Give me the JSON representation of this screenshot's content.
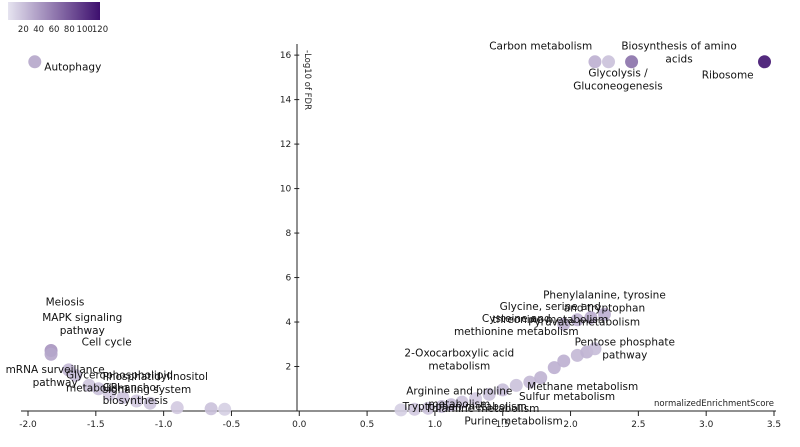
{
  "chart_data": {
    "type": "scatter",
    "title": "",
    "xlabel": "normalizedEnrichmentScore",
    "ylabel": "-Log10 of FDR",
    "xlim": [
      -2.0,
      3.5
    ],
    "ylim": [
      0,
      16.5
    ],
    "x_ticks": [
      -2.0,
      -1.5,
      -1.0,
      -0.5,
      0.0,
      0.5,
      1.0,
      1.5,
      2.0,
      2.5,
      3.0,
      3.5
    ],
    "x_tick_labels": [
      "-2.0",
      "-1.5",
      "-1.0",
      "-0.5",
      "0.0",
      "0.5",
      "1.0",
      "1.5",
      "2.0",
      "2.5",
      "3.0",
      "3.5"
    ],
    "y_ticks": [
      2,
      4,
      6,
      8,
      10,
      12,
      14,
      16
    ],
    "y_tick_labels": [
      "2",
      "4",
      "6",
      "8",
      "10",
      "12",
      "14",
      "16"
    ],
    "grid": false,
    "color_scale": {
      "min": 0,
      "max": 120,
      "ticks": [
        20,
        40,
        60,
        80,
        100,
        120
      ],
      "tick_labels": [
        "20",
        "40",
        "60",
        "80",
        "100",
        "120"
      ],
      "color_low": "#e6e4f0",
      "color_high": "#3d0f6e",
      "legend_position": "top-left"
    },
    "points": [
      {
        "x": -1.95,
        "y": 15.7,
        "color_value": 35,
        "label": "Autophagy",
        "label_anchor": "start"
      },
      {
        "x": 2.18,
        "y": 15.7,
        "color_value": 30,
        "label": "Carbon metabolism",
        "label_anchor": "end"
      },
      {
        "x": 2.28,
        "y": 15.7,
        "color_value": 20,
        "label": "Glycolysis / Gluconeogenesis",
        "label_anchor": "middle"
      },
      {
        "x": 2.45,
        "y": 15.7,
        "color_value": 65,
        "label": "Biosynthesis of amino acids",
        "label_anchor": "middle"
      },
      {
        "x": 3.43,
        "y": 15.7,
        "color_value": 118,
        "label": "Ribosome",
        "label_anchor": "end"
      },
      {
        "x": -1.83,
        "y": 2.72,
        "color_value": 45,
        "label": "Meiosis",
        "label_anchor": "start"
      },
      {
        "x": -1.83,
        "y": 2.55,
        "color_value": 35,
        "label": "MAPK signaling pathway",
        "label_anchor": "start"
      },
      {
        "x": -1.7,
        "y": 1.85,
        "color_value": 25,
        "label": "Cell cycle",
        "label_anchor": "start"
      },
      {
        "x": -1.65,
        "y": 1.6,
        "color_value": 22,
        "label": "mRNA surveillance pathway",
        "label_anchor": "end"
      },
      {
        "x": -1.55,
        "y": 1.15,
        "color_value": 18,
        "label": "Glycerophospholipid metabolism",
        "label_anchor": "start"
      },
      {
        "x": -1.48,
        "y": 1.0,
        "color_value": 20,
        "label": "Phosphatidylinositol signaling system",
        "label_anchor": "start"
      },
      {
        "x": -1.4,
        "y": 0.75,
        "color_value": 15,
        "label": "GPI-anchor biosynthesis",
        "label_anchor": "start"
      },
      {
        "x": -1.3,
        "y": 0.6,
        "color_value": 18,
        "label": "",
        "label_anchor": "start"
      },
      {
        "x": -1.2,
        "y": 0.45,
        "color_value": 15,
        "label": "",
        "label_anchor": "start"
      },
      {
        "x": -1.1,
        "y": 0.35,
        "color_value": 18,
        "label": "",
        "label_anchor": "start"
      },
      {
        "x": -0.9,
        "y": 0.15,
        "color_value": 15,
        "label": "",
        "label_anchor": "start"
      },
      {
        "x": -0.65,
        "y": 0.1,
        "color_value": 20,
        "label": "",
        "label_anchor": "start"
      },
      {
        "x": -0.55,
        "y": 0.08,
        "color_value": 12,
        "label": "",
        "label_anchor": "start"
      },
      {
        "x": 0.75,
        "y": 0.05,
        "color_value": 12,
        "label": "",
        "label_anchor": "start"
      },
      {
        "x": 0.85,
        "y": 0.08,
        "color_value": 15,
        "label": "",
        "label_anchor": "start"
      },
      {
        "x": 0.95,
        "y": 0.12,
        "color_value": 18,
        "label": "",
        "label_anchor": "start"
      },
      {
        "x": 1.05,
        "y": 0.2,
        "color_value": 20,
        "label": "Arginine and proline metabolism",
        "label_anchor": "middle"
      },
      {
        "x": 1.12,
        "y": 0.28,
        "color_value": 22,
        "label": "Tryptophan metabolism",
        "label_anchor": "middle"
      },
      {
        "x": 1.2,
        "y": 0.4,
        "color_value": 18,
        "label": "Thiamine metabolism",
        "label_anchor": "middle"
      },
      {
        "x": 1.3,
        "y": 0.55,
        "color_value": 15,
        "label": "Purine metabolism",
        "label_anchor": "middle"
      },
      {
        "x": 1.4,
        "y": 0.75,
        "color_value": 20,
        "label": "",
        "label_anchor": "start"
      },
      {
        "x": 1.5,
        "y": 0.95,
        "color_value": 22,
        "label": "Sulfur metabolism",
        "label_anchor": "start"
      },
      {
        "x": 1.6,
        "y": 1.15,
        "color_value": 20,
        "label": "Methane metabolism",
        "label_anchor": "start"
      },
      {
        "x": 1.7,
        "y": 1.3,
        "color_value": 25,
        "label": "",
        "label_anchor": "start"
      },
      {
        "x": 1.78,
        "y": 1.5,
        "color_value": 28,
        "label": "",
        "label_anchor": "start"
      },
      {
        "x": 1.88,
        "y": 1.95,
        "color_value": 30,
        "label": "",
        "label_anchor": "start"
      },
      {
        "x": 1.95,
        "y": 2.25,
        "color_value": 30,
        "label": "2-Oxocarboxylic acid metabolism",
        "label_anchor": "end"
      },
      {
        "x": 2.05,
        "y": 2.5,
        "color_value": 25,
        "label": "",
        "label_anchor": "start"
      },
      {
        "x": 2.12,
        "y": 2.65,
        "color_value": 28,
        "label": "Pentose phosphate pathway",
        "label_anchor": "middle"
      },
      {
        "x": 2.18,
        "y": 2.8,
        "color_value": 22,
        "label": "",
        "label_anchor": "start"
      },
      {
        "x": 1.95,
        "y": 3.9,
        "color_value": 30,
        "label": "Cysteine and methionine metabolism",
        "label_anchor": "middle"
      },
      {
        "x": 2.05,
        "y": 4.1,
        "color_value": 28,
        "label": "Glycine, serine and threonine metabolism",
        "label_anchor": "middle"
      },
      {
        "x": 2.15,
        "y": 4.2,
        "color_value": 32,
        "label": "Pyruvate metabolism",
        "label_anchor": "middle"
      },
      {
        "x": 2.25,
        "y": 4.35,
        "color_value": 30,
        "label": "Phenylalanine, tyrosine and tryptophan biosynthesis",
        "label_anchor": "middle"
      }
    ],
    "labels": [
      {
        "text": "Autophagy",
        "x": -1.88,
        "y": 15.3,
        "anchor": "start"
      },
      {
        "text": "Carbon metabolism",
        "x": 1.78,
        "y": 16.25,
        "anchor": "middle"
      },
      {
        "lines": [
          "Biosynthesis of amino",
          "acids"
        ],
        "x": 2.8,
        "y": 16.25,
        "anchor": "middle"
      },
      {
        "lines": [
          "Glycolysis /",
          "Gluconeogenesis"
        ],
        "x": 2.35,
        "y": 15.05,
        "anchor": "middle"
      },
      {
        "text": "Ribosome",
        "x": 3.35,
        "y": 14.95,
        "anchor": "end"
      },
      {
        "text": "Meiosis",
        "x": -1.87,
        "y": 4.75,
        "anchor": "start"
      },
      {
        "lines": [
          "MAPK signaling",
          "pathway"
        ],
        "x": -1.6,
        "y": 4.05,
        "anchor": "middle"
      },
      {
        "text": "Cell cycle",
        "x": -1.42,
        "y": 2.95,
        "anchor": "middle"
      },
      {
        "lines": [
          "mRNA surveillance",
          "pathway"
        ],
        "x": -1.8,
        "y": 1.7,
        "anchor": "middle"
      },
      {
        "lines": [
          "Glycerophospholipid",
          "metabolism"
        ],
        "x": -1.72,
        "y": 1.45,
        "anchor": "start"
      },
      {
        "lines": [
          "Phosphatidylinositol",
          "signaling system"
        ],
        "x": -1.45,
        "y": 1.4,
        "anchor": "start"
      },
      {
        "lines": [
          "GPI-anchor",
          "biosynthesis"
        ],
        "x": -1.45,
        "y": 0.9,
        "anchor": "start"
      },
      {
        "lines": [
          "Phenylalanine, tyrosine",
          "and tryptophan"
        ],
        "x": 2.25,
        "y": 5.05,
        "anchor": "middle"
      },
      {
        "lines": [
          "Glycine, serine and",
          "threonine metabolism"
        ],
        "x": 1.85,
        "y": 4.55,
        "anchor": "middle"
      },
      {
        "lines": [
          "Cysteine and",
          "methionine metabolism"
        ],
        "x": 1.6,
        "y": 4.0,
        "anchor": "middle"
      },
      {
        "text": "Pyruvate metabolism",
        "x": 2.1,
        "y": 3.85,
        "anchor": "middle"
      },
      {
        "lines": [
          "Pentose phosphate",
          "pathway"
        ],
        "x": 2.4,
        "y": 2.95,
        "anchor": "middle"
      },
      {
        "lines": [
          "2-Oxocarboxylic acid",
          "metabolism"
        ],
        "x": 1.18,
        "y": 2.45,
        "anchor": "middle"
      },
      {
        "lines": [
          "Arginine and proline",
          "metabolism"
        ],
        "x": 1.18,
        "y": 0.75,
        "anchor": "middle"
      },
      {
        "text": "Tryptophan metabolism",
        "x": 1.22,
        "y": 0.05,
        "anchor": "middle"
      },
      {
        "text": "Thiamine metabolism",
        "x": 1.35,
        "y": -0.05,
        "anchor": "middle"
      },
      {
        "text": "Methane metabolism",
        "x": 1.68,
        "y": 0.95,
        "anchor": "start"
      },
      {
        "text": "Sulfur metabolism",
        "x": 1.62,
        "y": 0.5,
        "anchor": "start"
      },
      {
        "text": "Purine metabolism",
        "x": 1.58,
        "y": -0.6,
        "anchor": "middle"
      }
    ]
  }
}
